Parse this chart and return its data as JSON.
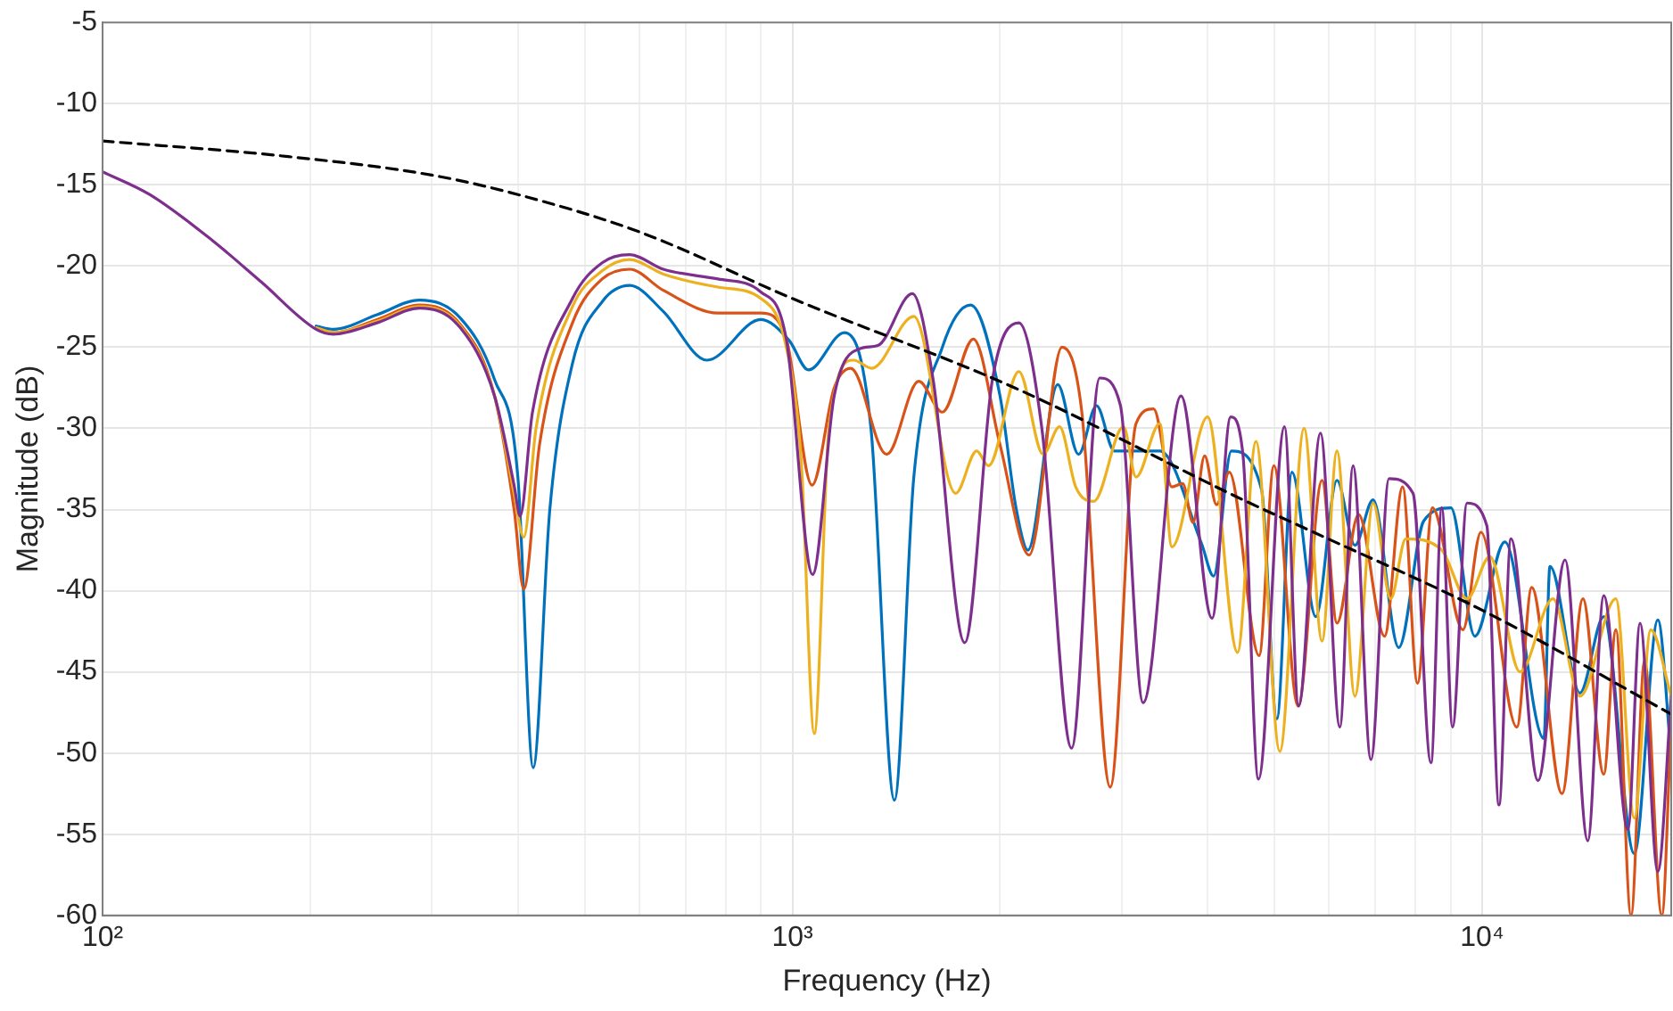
{
  "chart_data": {
    "type": "line",
    "xlabel": "Frequency (Hz)",
    "ylabel": "Magnitude (dB)",
    "log": "x",
    "grid": true,
    "marker": "none",
    "line_style": "solid",
    "xlim": [
      100,
      18800
    ],
    "ylim": [
      -60,
      -5
    ],
    "xticks": [
      {
        "value": 100,
        "label": "10²"
      },
      {
        "value": 200,
        "label": null
      },
      {
        "value": 300,
        "label": null
      },
      {
        "value": 400,
        "label": null
      },
      {
        "value": 500,
        "label": null
      },
      {
        "value": 600,
        "label": null
      },
      {
        "value": 700,
        "label": null
      },
      {
        "value": 800,
        "label": null
      },
      {
        "value": 900,
        "label": null
      },
      {
        "value": 1000,
        "label": "10³"
      },
      {
        "value": 2000,
        "label": null
      },
      {
        "value": 3000,
        "label": null
      },
      {
        "value": 4000,
        "label": null
      },
      {
        "value": 5000,
        "label": null
      },
      {
        "value": 6000,
        "label": null
      },
      {
        "value": 7000,
        "label": null
      },
      {
        "value": 8000,
        "label": null
      },
      {
        "value": 9000,
        "label": null
      },
      {
        "value": 10000,
        "label": "10⁴"
      }
    ],
    "yticks": [
      -60,
      -55,
      -50,
      -45,
      -40,
      -35,
      -30,
      -25,
      -20,
      -15,
      -10,
      -5
    ],
    "series": [
      {
        "color": "#0072bd",
        "x": [
          204,
          216,
          250,
          288,
          330,
          370,
          400,
          421,
          445,
          480,
          530,
          581,
          650,
          752,
          900,
          990,
          1055,
          1190,
          1300,
          1406,
          1500,
          1650,
          1813,
          2000,
          2110,
          2195,
          2425,
          2600,
          2760,
          2930,
          3410,
          3920,
          4080,
          4330,
          4790,
          5040,
          5300,
          5740,
          6160,
          6540,
          6950,
          7570,
          8230,
          9010,
          9760,
          10790,
          12290,
          12540,
          13860,
          15010,
          16620,
          17980,
          18800
        ],
        "values": [
          -23.7,
          -23.9,
          -23,
          -22.1,
          -23.2,
          -27,
          -33,
          -50.9,
          -35,
          -26,
          -22.2,
          -21.2,
          -22.8,
          -25.8,
          -23.3,
          -24.6,
          -26.4,
          -24.1,
          -30,
          -52.9,
          -33,
          -25,
          -22.4,
          -28,
          -34.9,
          -37.5,
          -27.3,
          -31.6,
          -28.6,
          -31.4,
          -31.4,
          -37.1,
          -39.1,
          -31.4,
          -33.8,
          -47.9,
          -32.7,
          -41.6,
          -33.2,
          -37.2,
          -34.4,
          -43.5,
          -35.7,
          -34.9,
          -42.8,
          -37,
          -49.1,
          -38.5,
          -46.3,
          -41.6,
          -56.2,
          -41.8,
          -50.2
        ]
      },
      {
        "color": "#d95319",
        "x": [
          204,
          216,
          250,
          288,
          330,
          370,
          395,
          408,
          430,
          480,
          530,
          581,
          650,
          780,
          900,
          980,
          1068,
          1150,
          1215,
          1370,
          1525,
          1650,
          1830,
          2000,
          2205,
          2460,
          2625,
          2890,
          3150,
          3340,
          3550,
          3680,
          3810,
          3960,
          4120,
          4300,
          4750,
          4990,
          5410,
          5860,
          6160,
          6620,
          7220,
          7670,
          8060,
          8470,
          9380,
          9960,
          11230,
          11800,
          13060,
          14000,
          15010,
          15630,
          16440,
          17200,
          18220,
          18800
        ],
        "values": [
          -23.8,
          -24.1,
          -23.3,
          -22.4,
          -23.6,
          -28,
          -35,
          -39.9,
          -31,
          -23.5,
          -20.8,
          -20.2,
          -21.5,
          -22.9,
          -22.9,
          -24.5,
          -33.5,
          -27.5,
          -26.3,
          -31.6,
          -27.1,
          -29,
          -24.5,
          -31,
          -37.8,
          -25,
          -28.8,
          -52.1,
          -29.7,
          -28.8,
          -33.6,
          -33.4,
          -35.8,
          -31.7,
          -34.7,
          -32.7,
          -44,
          -32.3,
          -47.1,
          -33.2,
          -42,
          -35.3,
          -42.8,
          -33.6,
          -45.7,
          -34.9,
          -42.4,
          -36.4,
          -48.4,
          -39.8,
          -52.5,
          -40.5,
          -51.3,
          -42.4,
          -60,
          -44.3,
          -60,
          -48
        ]
      },
      {
        "color": "#edb120",
        "x": [
          204,
          216,
          250,
          288,
          330,
          370,
          395,
          408,
          425,
          480,
          530,
          581,
          650,
          780,
          900,
          980,
          1030,
          1076,
          1130,
          1227,
          1303,
          1500,
          1725,
          1850,
          1925,
          2130,
          2310,
          2440,
          2575,
          2735,
          3020,
          3150,
          3410,
          3550,
          4000,
          4420,
          4700,
          5090,
          5520,
          5860,
          6160,
          6540,
          6950,
          7370,
          7750,
          8740,
          9510,
          10260,
          11350,
          12670,
          13860,
          15630,
          16620,
          17560,
          18800
        ],
        "values": [
          -23.8,
          -24.1,
          -23.4,
          -22.5,
          -23.7,
          -28,
          -34,
          -36.7,
          -30,
          -22.5,
          -20.3,
          -19.6,
          -20.5,
          -21.3,
          -22,
          -25,
          -32,
          -48.8,
          -30,
          -25.8,
          -26.3,
          -23.1,
          -34,
          -31.4,
          -32.3,
          -26.5,
          -31.6,
          -29.9,
          -33.6,
          -34.5,
          -29.9,
          -33,
          -29.7,
          -37.3,
          -29.3,
          -43.8,
          -30.8,
          -49.9,
          -30,
          -43.1,
          -31.4,
          -46.5,
          -34.6,
          -40.5,
          -36.8,
          -37.5,
          -40.5,
          -37.9,
          -45,
          -40.5,
          -46.5,
          -40.5,
          -54,
          -42.4,
          -46.5
        ]
      },
      {
        "color": "#7e2f8e",
        "x": [
          100,
          117,
          144,
          170,
          204,
          216,
          250,
          288,
          330,
          370,
          395,
          403,
          420,
          480,
          530,
          581,
          650,
          780,
          900,
          980,
          1070,
          1150,
          1252,
          1330,
          1493,
          1600,
          1778,
          1950,
          2130,
          2300,
          2540,
          2790,
          2990,
          3225,
          3660,
          4060,
          4320,
          4500,
          4740,
          5170,
          5420,
          5830,
          6220,
          6500,
          6900,
          7330,
          7940,
          8430,
          8740,
          9060,
          9510,
          10160,
          10580,
          11010,
          12050,
          13190,
          14230,
          15010,
          16270,
          16940,
          17980,
          18800
        ],
        "values": [
          -14.2,
          -15.6,
          -18.4,
          -21,
          -23.9,
          -24.2,
          -23.5,
          -22.6,
          -23.8,
          -28,
          -33.5,
          -35.4,
          -29,
          -22,
          -19.8,
          -19.3,
          -20.2,
          -20.8,
          -21.6,
          -24.5,
          -39,
          -28,
          -25.1,
          -24.9,
          -21.7,
          -27,
          -43.2,
          -27,
          -23.5,
          -30,
          -49.7,
          -26.9,
          -28.6,
          -46.9,
          -28,
          -41.7,
          -29.3,
          -31.6,
          -51.6,
          -29.9,
          -47.1,
          -30.3,
          -48.4,
          -32.3,
          -50.4,
          -33.1,
          -34,
          -50.6,
          -34.9,
          -48.4,
          -34.6,
          -36,
          -53.2,
          -36.8,
          -51.7,
          -38.1,
          -55.4,
          -40.3,
          -54.7,
          -42,
          -57.3,
          -46.5
        ]
      },
      {
        "color": "#000000",
        "line_style": "dashed",
        "x": [
          100,
          180,
          300,
          400,
          600,
          1000,
          2100,
          4500,
          5700,
          10000,
          18800
        ],
        "values": [
          -12.3,
          -13.2,
          -14.4,
          -15.6,
          -17.9,
          -22,
          -27.5,
          -34.4,
          -36.4,
          -41.2,
          -47.6
        ]
      }
    ]
  }
}
